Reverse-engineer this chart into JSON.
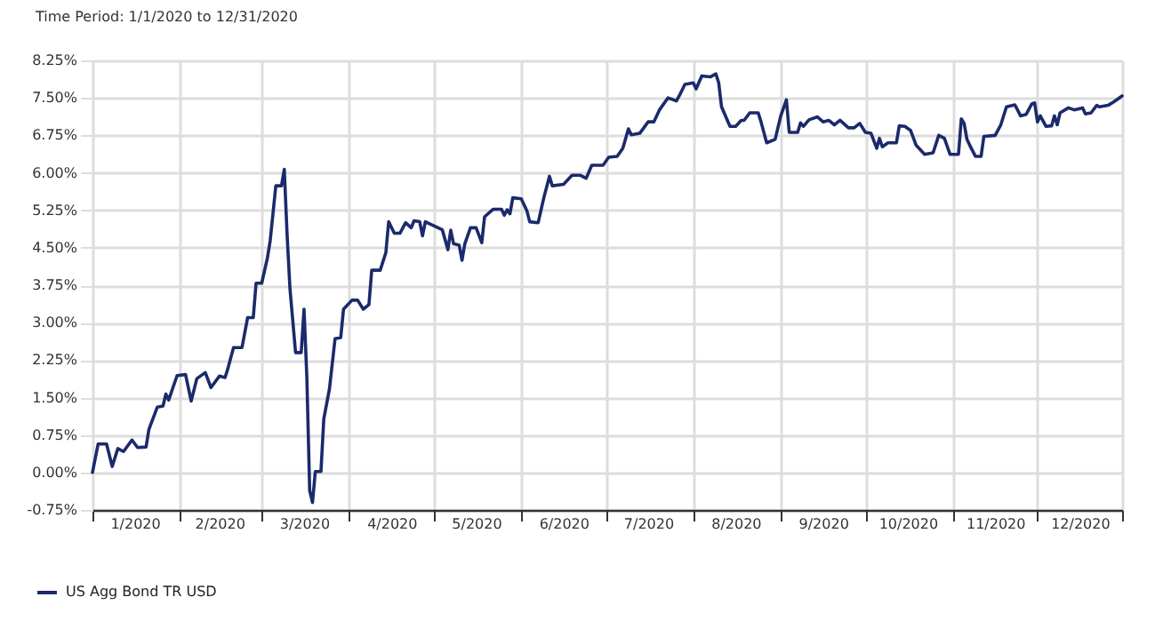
{
  "chart_data": {
    "type": "line",
    "title": "Time Period: 1/1/2020 to 12/31/2020",
    "x": [
      "2020-01-01",
      "2020-01-03",
      "2020-01-06",
      "2020-01-08",
      "2020-01-10",
      "2020-01-12",
      "2020-01-15",
      "2020-01-17",
      "2020-01-20",
      "2020-01-21",
      "2020-01-24",
      "2020-01-26",
      "2020-01-27",
      "2020-01-28",
      "2020-01-31",
      "2020-02-03",
      "2020-02-05",
      "2020-02-07",
      "2020-02-10",
      "2020-02-12",
      "2020-02-15",
      "2020-02-17",
      "2020-02-18",
      "2020-02-20",
      "2020-02-23",
      "2020-02-25",
      "2020-02-27",
      "2020-02-28",
      "2020-03-01",
      "2020-03-03",
      "2020-03-04",
      "2020-03-06",
      "2020-03-08",
      "2020-03-09",
      "2020-03-10",
      "2020-03-11",
      "2020-03-13",
      "2020-03-15",
      "2020-03-16",
      "2020-03-17",
      "2020-03-18",
      "2020-03-19",
      "2020-03-20",
      "2020-03-22",
      "2020-03-23",
      "2020-03-25",
      "2020-03-27",
      "2020-03-29",
      "2020-03-30",
      "2020-04-02",
      "2020-04-04",
      "2020-04-06",
      "2020-04-08",
      "2020-04-09",
      "2020-04-12",
      "2020-04-14",
      "2020-04-15",
      "2020-04-17",
      "2020-04-19",
      "2020-04-21",
      "2020-04-23",
      "2020-04-24",
      "2020-04-26",
      "2020-04-27",
      "2020-04-28",
      "2020-05-01",
      "2020-05-04",
      "2020-05-06",
      "2020-05-07",
      "2020-05-08",
      "2020-05-10",
      "2020-05-11",
      "2020-05-12",
      "2020-05-14",
      "2020-05-16",
      "2020-05-18",
      "2020-05-19",
      "2020-05-22",
      "2020-05-25",
      "2020-05-26",
      "2020-05-27",
      "2020-05-28",
      "2020-05-29",
      "2020-06-01",
      "2020-06-03",
      "2020-06-04",
      "2020-06-07",
      "2020-06-09",
      "2020-06-11",
      "2020-06-12",
      "2020-06-16",
      "2020-06-19",
      "2020-06-22",
      "2020-06-24",
      "2020-06-26",
      "2020-06-30",
      "2020-07-02",
      "2020-07-05",
      "2020-07-07",
      "2020-07-09",
      "2020-07-10",
      "2020-07-13",
      "2020-07-16",
      "2020-07-18",
      "2020-07-20",
      "2020-07-23",
      "2020-07-26",
      "2020-07-27",
      "2020-07-29",
      "2020-08-01",
      "2020-08-02",
      "2020-08-04",
      "2020-08-07",
      "2020-08-09",
      "2020-08-10",
      "2020-08-11",
      "2020-08-14",
      "2020-08-16",
      "2020-08-18",
      "2020-08-19",
      "2020-08-21",
      "2020-08-24",
      "2020-08-25",
      "2020-08-27",
      "2020-08-30",
      "2020-09-01",
      "2020-09-03",
      "2020-09-04",
      "2020-09-07",
      "2020-09-08",
      "2020-09-09",
      "2020-09-11",
      "2020-09-14",
      "2020-09-16",
      "2020-09-18",
      "2020-09-20",
      "2020-09-22",
      "2020-09-25",
      "2020-09-27",
      "2020-09-29",
      "2020-10-01",
      "2020-10-03",
      "2020-10-05",
      "2020-10-06",
      "2020-10-07",
      "2020-10-09",
      "2020-10-12",
      "2020-10-13",
      "2020-10-15",
      "2020-10-17",
      "2020-10-19",
      "2020-10-22",
      "2020-10-25",
      "2020-10-27",
      "2020-10-29",
      "2020-10-31",
      "2020-11-03",
      "2020-11-04",
      "2020-11-05",
      "2020-11-06",
      "2020-11-07",
      "2020-11-09",
      "2020-11-11",
      "2020-11-12",
      "2020-11-16",
      "2020-11-18",
      "2020-11-20",
      "2020-11-23",
      "2020-11-25",
      "2020-11-27",
      "2020-11-29",
      "2020-11-30",
      "2020-12-01",
      "2020-12-02",
      "2020-12-04",
      "2020-12-06",
      "2020-12-07",
      "2020-12-08",
      "2020-12-09",
      "2020-12-12",
      "2020-12-14",
      "2020-12-17",
      "2020-12-18",
      "2020-12-20",
      "2020-12-22",
      "2020-12-23",
      "2020-12-26",
      "2020-12-28",
      "2020-12-31"
    ],
    "series": [
      {
        "name": "US Agg Bond TR USD",
        "color": "#1b2a6b",
        "values": [
          0,
          0.57,
          0.57,
          0.12,
          0.48,
          0.42,
          0.65,
          0.5,
          0.51,
          0.86,
          1.31,
          1.33,
          1.57,
          1.45,
          1.94,
          1.96,
          1.43,
          1.88,
          2.0,
          1.7,
          1.93,
          1.9,
          2.08,
          2.5,
          2.5,
          3.1,
          3.1,
          3.79,
          3.79,
          4.29,
          4.64,
          5.74,
          5.74,
          6.07,
          4.76,
          3.69,
          2.4,
          2.4,
          3.27,
          1.9,
          -0.36,
          -0.6,
          0.02,
          0.02,
          1.07,
          1.67,
          2.68,
          2.7,
          3.27,
          3.45,
          3.45,
          3.27,
          3.36,
          4.05,
          4.05,
          4.4,
          5.02,
          4.79,
          4.79,
          5.0,
          4.9,
          5.04,
          5.02,
          4.74,
          5.02,
          4.94,
          4.86,
          4.46,
          4.85,
          4.58,
          4.55,
          4.25,
          4.58,
          4.9,
          4.9,
          4.6,
          5.12,
          5.27,
          5.27,
          5.15,
          5.26,
          5.18,
          5.5,
          5.48,
          5.24,
          5.02,
          5.0,
          5.5,
          5.93,
          5.74,
          5.77,
          5.95,
          5.95,
          5.89,
          6.15,
          6.15,
          6.31,
          6.33,
          6.49,
          6.88,
          6.76,
          6.79,
          7.02,
          7.02,
          7.26,
          7.5,
          7.44,
          7.54,
          7.77,
          7.8,
          7.68,
          7.94,
          7.92,
          7.98,
          7.8,
          7.32,
          6.93,
          6.93,
          7.05,
          7.05,
          7.2,
          7.2,
          7.02,
          6.6,
          6.67,
          7.14,
          7.46,
          6.81,
          6.81,
          7.0,
          6.93,
          7.06,
          7.12,
          7.02,
          7.05,
          6.96,
          7.05,
          6.9,
          6.9,
          6.99,
          6.81,
          6.79,
          6.49,
          6.69,
          6.52,
          6.6,
          6.6,
          6.94,
          6.93,
          6.85,
          6.55,
          6.37,
          6.4,
          6.75,
          6.69,
          6.37,
          6.37,
          7.08,
          6.99,
          6.67,
          6.55,
          6.33,
          6.33,
          6.73,
          6.75,
          6.96,
          7.32,
          7.36,
          7.14,
          7.17,
          7.38,
          7.4,
          7.02,
          7.14,
          6.93,
          6.94,
          7.14,
          6.96,
          7.2,
          7.3,
          7.26,
          7.3,
          7.18,
          7.2,
          7.35,
          7.32,
          7.35,
          7.42,
          7.54
        ]
      }
    ],
    "xlim": [
      "2020-01-01",
      "2020-12-31"
    ],
    "xticks": [
      {
        "value": "2020-01-01",
        "label": null
      },
      {
        "value": "2020-01-16",
        "label": "1/2020"
      },
      {
        "value": "2020-02-01",
        "label": null
      },
      {
        "value": "2020-02-15",
        "label": "2/2020"
      },
      {
        "value": "2020-03-01",
        "label": null
      },
      {
        "value": "2020-03-16",
        "label": "3/2020"
      },
      {
        "value": "2020-04-01",
        "label": null
      },
      {
        "value": "2020-04-16",
        "label": "4/2020"
      },
      {
        "value": "2020-05-01",
        "label": null
      },
      {
        "value": "2020-05-16",
        "label": "5/2020"
      },
      {
        "value": "2020-06-01",
        "label": null
      },
      {
        "value": "2020-06-16",
        "label": "6/2020"
      },
      {
        "value": "2020-07-01",
        "label": null
      },
      {
        "value": "2020-07-16",
        "label": "7/2020"
      },
      {
        "value": "2020-08-01",
        "label": null
      },
      {
        "value": "2020-08-16",
        "label": "8/2020"
      },
      {
        "value": "2020-09-01",
        "label": null
      },
      {
        "value": "2020-09-16",
        "label": "9/2020"
      },
      {
        "value": "2020-10-01",
        "label": null
      },
      {
        "value": "2020-10-16",
        "label": "10/2020"
      },
      {
        "value": "2020-11-01",
        "label": null
      },
      {
        "value": "2020-11-16",
        "label": "11/2020"
      },
      {
        "value": "2020-12-01",
        "label": null
      },
      {
        "value": "2020-12-16",
        "label": "12/2020"
      },
      {
        "value": "2020-12-31",
        "label": null
      }
    ],
    "ylim": [
      -0.75,
      8.25
    ],
    "yticks": [
      {
        "value": -0.75,
        "label": "-0.75%"
      },
      {
        "value": 0,
        "label": "0.00%"
      },
      {
        "value": 0.75,
        "label": "0.75%"
      },
      {
        "value": 1.5,
        "label": "1.50%"
      },
      {
        "value": 2.25,
        "label": "2.25%"
      },
      {
        "value": 3,
        "label": "3.00%"
      },
      {
        "value": 3.75,
        "label": "3.75%"
      },
      {
        "value": 4.5,
        "label": "4.50%"
      },
      {
        "value": 5.25,
        "label": "5.25%"
      },
      {
        "value": 6,
        "label": "6.00%"
      },
      {
        "value": 6.75,
        "label": "6.75%"
      },
      {
        "value": 7.5,
        "label": "7.50%"
      },
      {
        "value": 8.25,
        "label": "8.25%"
      }
    ],
    "grid": true,
    "legend": "bottom left",
    "marker": "none",
    "line_style": "solid"
  }
}
